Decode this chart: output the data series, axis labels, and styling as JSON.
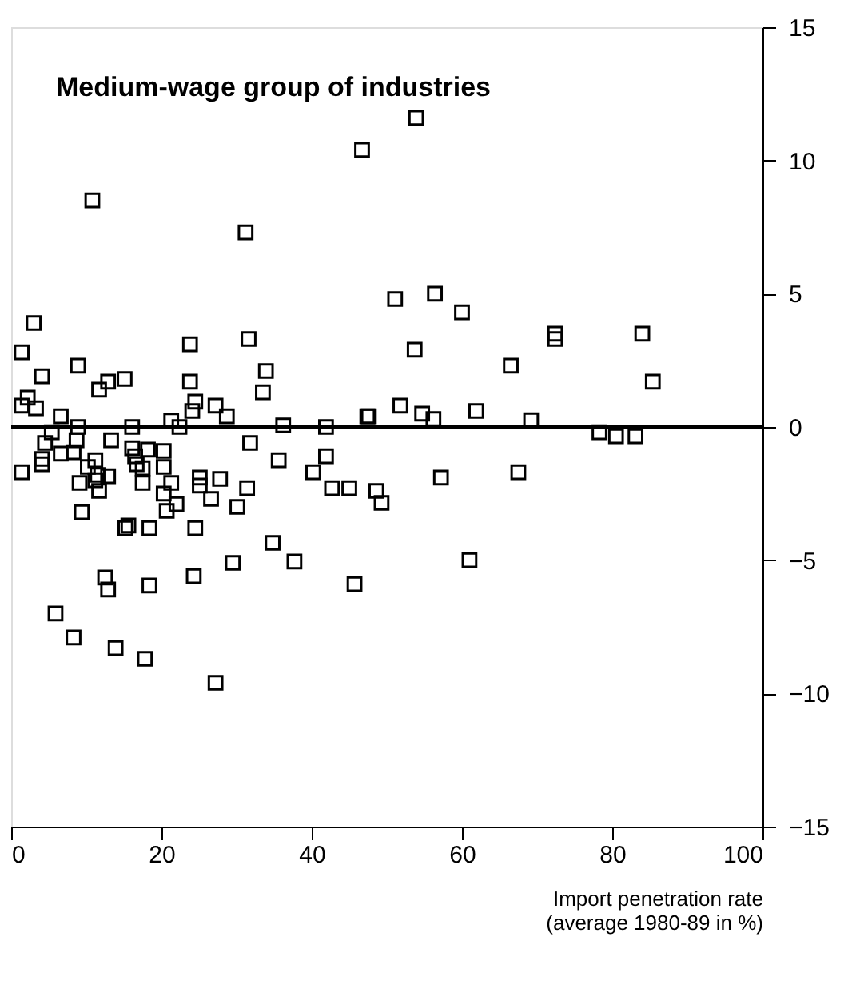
{
  "chart_data": {
    "type": "scatter",
    "title": "Medium-wage group of industries",
    "xlabel": "Import penetration rate\n(average 1980-89 in %)",
    "xlim": [
      0,
      100
    ],
    "xticks": [
      0,
      20,
      40,
      60,
      80,
      100
    ],
    "ylim": [
      -15,
      15
    ],
    "yticks": [
      -15,
      -10,
      -5,
      0,
      5,
      10,
      15
    ],
    "marker": "square",
    "grid": false,
    "ref_lines": [
      {
        "axis": "y",
        "value": 0,
        "color": "#000000"
      }
    ],
    "series": [
      {
        "color": "#000000",
        "x": [
          53.9,
          46.7,
          10.8,
          31.2,
          3.0,
          1.4,
          23.8,
          31.6,
          8.9,
          4.1,
          33.9,
          23.8,
          11.7,
          12.9,
          15.1,
          33.5,
          2.2,
          51.1,
          56.4,
          60.0,
          53.7,
          72.4,
          72.4,
          84.0,
          66.5,
          85.4,
          47.6,
          51.8,
          54.7,
          56.2,
          61.9,
          69.2,
          78.3,
          80.5,
          83.1,
          57.2,
          67.5,
          48.6,
          49.3,
          61.0,
          1.4,
          3.3,
          6.6,
          8.9,
          5.4,
          24.5,
          24.1,
          27.2,
          28.7,
          21.3,
          22.4,
          16.1,
          36.2,
          41.9,
          47.4,
          4.5,
          8.7,
          13.3,
          31.8,
          35.6,
          41.9,
          40.2,
          42.7,
          45.0,
          1.4,
          4.1,
          4.1,
          6.6,
          8.3,
          11.2,
          10.2,
          11.5,
          12.9,
          9.1,
          11.7,
          11.2,
          16.1,
          16.5,
          18.2,
          20.3,
          16.7,
          17.5,
          20.3,
          17.5,
          21.3,
          25.1,
          27.8,
          25.1,
          31.4,
          20.3,
          26.6,
          22.0,
          20.7,
          30.1,
          9.4,
          15.2,
          15.6,
          18.4,
          24.5,
          34.8,
          37.7,
          29.5,
          24.3,
          18.4,
          12.5,
          12.9,
          45.7,
          5.9,
          8.3,
          13.9,
          17.8,
          27.2
        ],
        "values": [
          11.6,
          10.4,
          8.5,
          7.3,
          3.9,
          2.8,
          3.1,
          3.3,
          2.3,
          1.9,
          2.1,
          1.7,
          1.4,
          1.7,
          1.8,
          1.3,
          1.1,
          4.8,
          5.0,
          4.3,
          2.9,
          3.5,
          3.3,
          3.5,
          2.3,
          1.7,
          0.4,
          0.8,
          0.5,
          0.3,
          0.6,
          0.25,
          -0.2,
          -0.35,
          -0.35,
          -1.9,
          -1.7,
          -2.4,
          -2.85,
          -5.0,
          0.8,
          0.7,
          0.4,
          0.0,
          -0.2,
          0.95,
          0.6,
          0.8,
          0.4,
          0.24,
          0.0,
          0.0,
          0.06,
          0.0,
          0.4,
          -0.6,
          -0.5,
          -0.5,
          -0.6,
          -1.25,
          -1.1,
          -1.7,
          -2.3,
          -2.3,
          -1.7,
          -1.4,
          -1.2,
          -1.0,
          -0.95,
          -1.25,
          -1.5,
          -1.8,
          -1.85,
          -2.1,
          -2.4,
          -2.0,
          -0.8,
          -1.1,
          -0.85,
          -0.9,
          -1.4,
          -1.55,
          -1.5,
          -2.1,
          -2.1,
          -1.9,
          -1.95,
          -2.2,
          -2.3,
          -2.5,
          -2.7,
          -2.9,
          -3.15,
          -3.0,
          -3.2,
          -3.8,
          -3.7,
          -3.8,
          -3.8,
          -4.35,
          -5.05,
          -5.1,
          -5.6,
          -5.95,
          -5.65,
          -6.1,
          -5.9,
          -7.0,
          -7.9,
          -8.3,
          -8.7,
          -9.6
        ]
      }
    ]
  }
}
